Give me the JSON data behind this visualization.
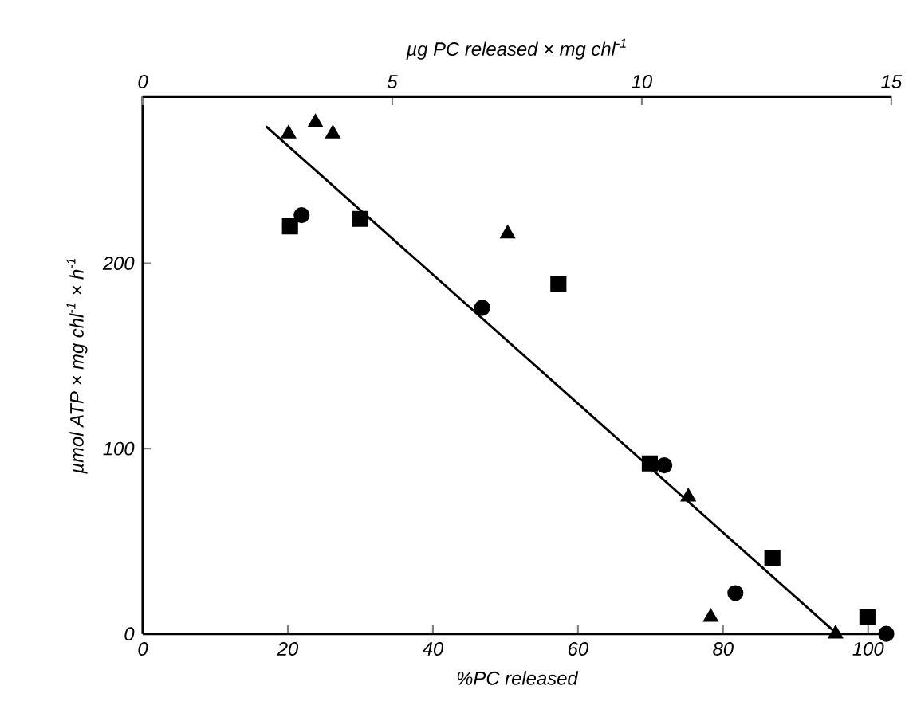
{
  "chart_data": {
    "type": "scatter",
    "xlabel": "%PC released",
    "ylabel": "µmol ATP × mg chl$^{-1}$ × h$^{-1}$",
    "x2label": "µg PC released × mg chl$^{-1}$",
    "xlim": [
      0,
      103.2
    ],
    "xticks": [
      0,
      20,
      40,
      60,
      80,
      100
    ],
    "ylim": [
      0,
      290
    ],
    "yticks": [
      0,
      100,
      200
    ],
    "x2lim": [
      0,
      15
    ],
    "x2ticks": [
      0,
      5,
      10,
      15
    ],
    "grid": false,
    "series": [
      {
        "color": "#000000",
        "marker": "triangle",
        "x": [
          20.1,
          23.8,
          26.2,
          50.3,
          75.2,
          78.3,
          95.5
        ],
        "values": [
          270,
          276,
          270,
          216,
          74,
          9,
          0
        ]
      },
      {
        "color": "#000000",
        "marker": "circle",
        "x": [
          21.9,
          46.8,
          71.9,
          81.7,
          102.5
        ],
        "values": [
          226,
          176,
          91,
          22,
          0
        ]
      },
      {
        "color": "#000000",
        "marker": "square",
        "x": [
          20.3,
          30,
          57.3,
          69.9,
          86.8,
          99.9
        ],
        "values": [
          220,
          224,
          189,
          92,
          41,
          9
        ]
      },
      {
        "type": "line",
        "color": "#000000",
        "marker": "none",
        "x": [
          17,
          95.7
        ],
        "values": [
          274,
          0
        ]
      }
    ]
  }
}
